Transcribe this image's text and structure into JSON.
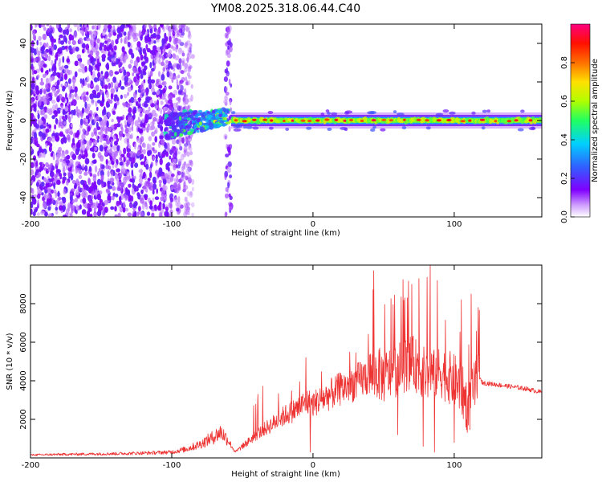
{
  "title": "YM08.2025.318.06.44.C40",
  "chart_data": [
    {
      "type": "heatmap",
      "name": "spectrogram",
      "xlabel": "Height of straight line (km)",
      "ylabel": "Frequency (Hz)",
      "xlim": [
        -200,
        162
      ],
      "ylim": [
        -50,
        50
      ],
      "x_ticks": [
        -200,
        -100,
        0,
        100
      ],
      "y_ticks": [
        -40,
        -20,
        0,
        20,
        40
      ],
      "grid": false,
      "colorbar": {
        "label": "Normalized spectral amplitude",
        "range": [
          0.0,
          1.0
        ],
        "ticks": [
          0.0,
          0.2,
          0.4,
          0.6,
          0.8
        ],
        "colormap": [
          "#ffffff",
          "#8000ff",
          "#3060ff",
          "#00d0ff",
          "#20ff60",
          "#b0ff00",
          "#ffe000",
          "#ff7000",
          "#ff1000",
          "#ff0080"
        ]
      },
      "regions": [
        {
          "x_range": [
            -200,
            -85
          ],
          "description": "broadband noise",
          "amplitude": 0.05
        },
        {
          "x_range": [
            -62,
            -58
          ],
          "description": "broadband noise",
          "amplitude": 0.05
        },
        {
          "x_range": [
            -105,
            -60
          ],
          "description": "emerging carrier",
          "center_hz": [
            -3,
            2
          ],
          "amplitude": 0.35
        },
        {
          "x_range": [
            -58,
            162
          ],
          "description": "carrier trace",
          "center_hz": 0,
          "amplitude": 0.9
        }
      ]
    },
    {
      "type": "line",
      "name": "snr",
      "xlabel": "Height of straight line (km)",
      "ylabel": "SNR (10 * v/v)",
      "xlim": [
        -200,
        162
      ],
      "ylim": [
        0,
        10000
      ],
      "x_ticks": [
        -200,
        -100,
        0,
        100
      ],
      "y_ticks": [
        2000,
        4000,
        6000,
        8000
      ],
      "grid": false,
      "series": [
        {
          "color": "#ee3333",
          "x": [
            -200,
            -180,
            -160,
            -140,
            -120,
            -100,
            -90,
            -80,
            -70,
            -65,
            -60,
            -55,
            -50,
            -40,
            -30,
            -20,
            -10,
            -5,
            0,
            10,
            20,
            30,
            40,
            45,
            50,
            60,
            70,
            80,
            90,
            100,
            105,
            110,
            115,
            118,
            120,
            130,
            140,
            150,
            162
          ],
          "y": [
            150,
            180,
            200,
            220,
            250,
            300,
            450,
            700,
            1100,
            1350,
            900,
            300,
            600,
            1200,
            1700,
            2200,
            2600,
            2900,
            2800,
            3200,
            3600,
            3900,
            4300,
            4400,
            4200,
            4600,
            5000,
            4300,
            4500,
            4000,
            3600,
            2500,
            3800,
            4100,
            3900,
            3800,
            3700,
            3600,
            3400
          ]
        }
      ],
      "peaks": [
        {
          "x": -39,
          "y": 3300
        },
        {
          "x": -5,
          "y": 5200
        },
        {
          "x": 43,
          "y": 9700
        },
        {
          "x": 65,
          "y": 8300
        },
        {
          "x": 75,
          "y": 9300
        },
        {
          "x": 83,
          "y": 10000
        },
        {
          "x": 88,
          "y": 9200
        },
        {
          "x": 105,
          "y": 8200
        },
        {
          "x": 112,
          "y": 8500
        },
        {
          "x": 117,
          "y": 7800
        }
      ],
      "dips": [
        {
          "x": -2,
          "y": 300
        },
        {
          "x": 60,
          "y": 1200
        },
        {
          "x": 78,
          "y": 600
        },
        {
          "x": 86,
          "y": 300
        },
        {
          "x": 100,
          "y": 800
        },
        {
          "x": 110,
          "y": 1700
        }
      ]
    }
  ]
}
